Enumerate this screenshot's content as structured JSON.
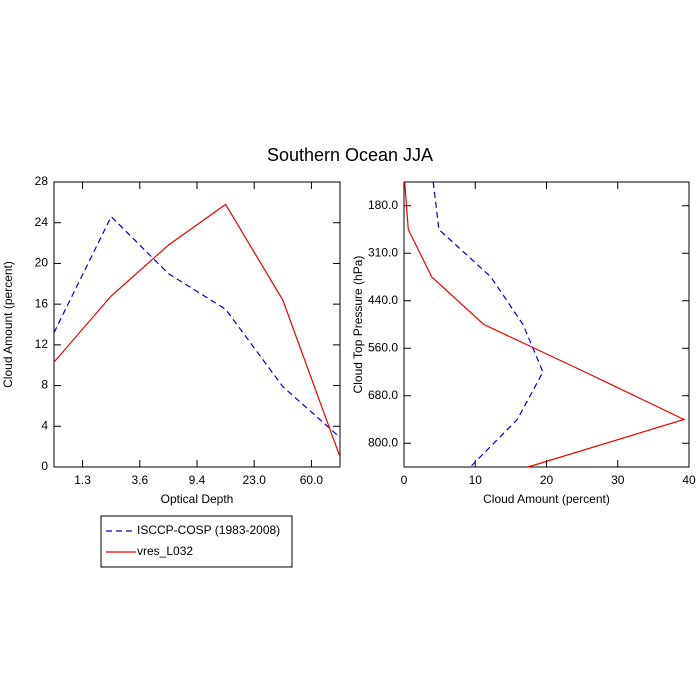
{
  "title": "Southern Ocean JJA",
  "chart_data": [
    {
      "type": "line",
      "orientation": "vertical",
      "xlabel": "Optical Depth",
      "ylabel": "Cloud Amount (percent)",
      "x": [
        0,
        1,
        2,
        3,
        4,
        5
      ],
      "xlim": [
        0,
        5
      ],
      "xticks": [
        {
          "value": 0.5,
          "label": "1.3"
        },
        {
          "value": 1.5,
          "label": "3.6"
        },
        {
          "value": 2.5,
          "label": "9.4"
        },
        {
          "value": 3.5,
          "label": "23.0"
        },
        {
          "value": 4.5,
          "label": "60.0"
        }
      ],
      "ylim": [
        0,
        28
      ],
      "yticks": [
        0,
        4,
        8,
        12,
        16,
        20,
        24,
        28
      ],
      "series": [
        {
          "name": "ISCCP-COSP (1983-2008)",
          "color": "#0000cc",
          "dash": true,
          "values": [
            13.2,
            24.6,
            19.0,
            15.5,
            7.9,
            2.9
          ]
        },
        {
          "name": "vres_L032",
          "color": "#ee0000",
          "dash": false,
          "values": [
            10.3,
            16.8,
            21.8,
            25.8,
            16.4,
            1.0
          ]
        }
      ]
    },
    {
      "type": "line",
      "orientation": "horizontal",
      "xlabel": "Cloud Amount (percent)",
      "ylabel": "Cloud Top Pressure (hPa)",
      "y": [
        0,
        1,
        2,
        3,
        4,
        5,
        6
      ],
      "ylim": [
        0,
        6
      ],
      "y_reversed": true,
      "yticks": [
        {
          "value": 0.5,
          "label": "180.0"
        },
        {
          "value": 1.5,
          "label": "310.0"
        },
        {
          "value": 2.5,
          "label": "440.0"
        },
        {
          "value": 3.5,
          "label": "560.0"
        },
        {
          "value": 4.5,
          "label": "680.0"
        },
        {
          "value": 5.5,
          "label": "800.0"
        }
      ],
      "xlim": [
        0,
        40
      ],
      "xticks": [
        0,
        10,
        20,
        30,
        40
      ],
      "series": [
        {
          "color": "#0000cc",
          "dash": true,
          "values": [
            4.1,
            4.9,
            12.2,
            16.7,
            19.5,
            15.9,
            9.3
          ]
        },
        {
          "color": "#ee0000",
          "dash": false,
          "values": [
            0.1,
            0.6,
            3.9,
            11.2,
            25.4,
            39.3,
            17.4
          ]
        }
      ]
    }
  ]
}
